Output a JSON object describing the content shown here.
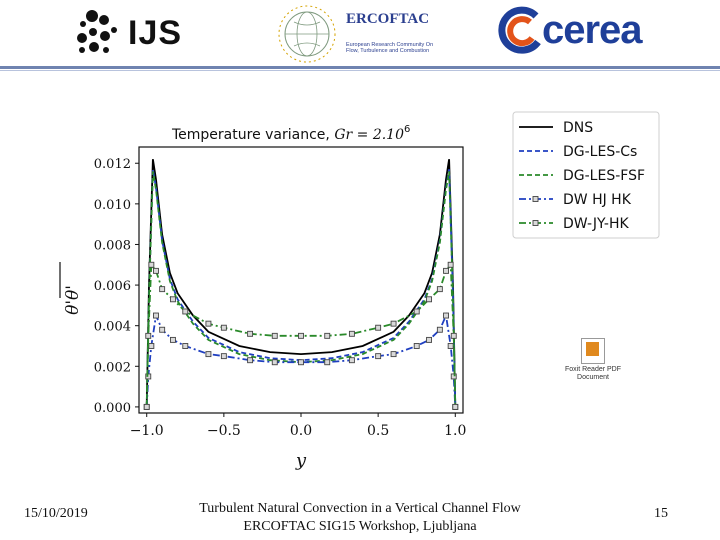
{
  "header": {
    "ijs_logo_text": "IJS",
    "ercoftac_title": "ERCOFTAC",
    "ercoftac_subtitle": "European Research Community On Flow, Turbulence and Combustion",
    "cerea_logo_text": "cerea"
  },
  "footer": {
    "date": "15/10/2019",
    "title_line1": "Turbulent Natural Convection in a Vertical Channel Flow",
    "title_line2": "ERCOFTAC SIG15 Workshop, Ljubljana",
    "page_number": "15"
  },
  "embedded_object": {
    "label_line1": "Foxit Reader PDF",
    "label_line2": "Document"
  },
  "chart_data": {
    "type": "line",
    "title": "Temperature variance, Gr = 2.10^6",
    "title_main": "Temperature variance, ",
    "title_math": "Gr = 2.10",
    "title_exp": "6",
    "xlabel": "y",
    "ylabel": "θ'θ'",
    "xlim": [
      -1.05,
      1.05
    ],
    "ylim": [
      -0.0003,
      0.0128
    ],
    "xticks": [
      -1.0,
      -0.5,
      0.0,
      0.5,
      1.0
    ],
    "xtick_labels": [
      "−1.0",
      "−0.5",
      "0.0",
      "0.5",
      "1.0"
    ],
    "yticks": [
      0.0,
      0.002,
      0.004,
      0.006,
      0.008,
      0.01,
      0.012
    ],
    "ytick_labels": [
      "0.000",
      "0.002",
      "0.004",
      "0.006",
      "0.008",
      "0.010",
      "0.012"
    ],
    "grid": false,
    "legend_position": "outside-right-top",
    "series": [
      {
        "name": "DNS",
        "color": "#000000",
        "style": "solid",
        "marker": "none",
        "x": [
          -1.0,
          -0.985,
          -0.96,
          -0.94,
          -0.9,
          -0.85,
          -0.8,
          -0.7,
          -0.6,
          -0.4,
          -0.2,
          0.0,
          0.2,
          0.4,
          0.6,
          0.7,
          0.8,
          0.85,
          0.9,
          0.94,
          0.96,
          0.985,
          1.0
        ],
        "y": [
          0.0,
          0.006,
          0.0122,
          0.0112,
          0.0085,
          0.0066,
          0.0056,
          0.0045,
          0.0037,
          0.003,
          0.0027,
          0.0026,
          0.0027,
          0.003,
          0.0037,
          0.0045,
          0.0056,
          0.0066,
          0.0085,
          0.0112,
          0.0122,
          0.006,
          0.0
        ]
      },
      {
        "name": "DG-LES-Cs",
        "color": "#1f3fc0",
        "style": "dashed",
        "marker": "none",
        "x": [
          -1.0,
          -0.985,
          -0.96,
          -0.94,
          -0.9,
          -0.85,
          -0.8,
          -0.7,
          -0.6,
          -0.4,
          -0.2,
          0.0,
          0.2,
          0.4,
          0.6,
          0.7,
          0.8,
          0.85,
          0.9,
          0.94,
          0.96,
          0.985,
          1.0
        ],
        "y": [
          0.0,
          0.0055,
          0.0117,
          0.0108,
          0.0082,
          0.0063,
          0.0053,
          0.0042,
          0.0034,
          0.0027,
          0.0024,
          0.0023,
          0.0024,
          0.0027,
          0.0034,
          0.0042,
          0.0053,
          0.0063,
          0.0082,
          0.0108,
          0.0117,
          0.0055,
          0.0
        ]
      },
      {
        "name": "DG-LES-FSF",
        "color": "#2a8a2a",
        "style": "dashed",
        "marker": "none",
        "x": [
          -1.0,
          -0.985,
          -0.96,
          -0.94,
          -0.9,
          -0.85,
          -0.8,
          -0.7,
          -0.6,
          -0.4,
          -0.2,
          0.0,
          0.2,
          0.4,
          0.6,
          0.7,
          0.8,
          0.85,
          0.9,
          0.94,
          0.96,
          0.985,
          1.0
        ],
        "y": [
          0.0,
          0.0054,
          0.0116,
          0.0107,
          0.0081,
          0.0062,
          0.0052,
          0.0041,
          0.0033,
          0.0026,
          0.0023,
          0.0022,
          0.0023,
          0.0026,
          0.0033,
          0.0041,
          0.0052,
          0.0062,
          0.0081,
          0.0107,
          0.0116,
          0.0054,
          0.0
        ]
      },
      {
        "name": "DW HJ HK",
        "color": "#1f3fc0",
        "style": "dashdot",
        "marker": "square",
        "x": [
          -1.0,
          -0.99,
          -0.97,
          -0.94,
          -0.9,
          -0.83,
          -0.75,
          -0.6,
          -0.5,
          -0.33,
          -0.17,
          0.0,
          0.17,
          0.33,
          0.5,
          0.6,
          0.75,
          0.83,
          0.9,
          0.94,
          0.97,
          0.99,
          1.0
        ],
        "y": [
          0.0,
          0.0015,
          0.003,
          0.0045,
          0.0038,
          0.0033,
          0.003,
          0.0026,
          0.0025,
          0.0023,
          0.0022,
          0.0022,
          0.0022,
          0.0023,
          0.0025,
          0.0026,
          0.003,
          0.0033,
          0.0038,
          0.0045,
          0.003,
          0.0015,
          0.0
        ]
      },
      {
        "name": "DW-JY-HK",
        "color": "#2a8a2a",
        "style": "dashdot",
        "marker": "square",
        "x": [
          -1.0,
          -0.99,
          -0.97,
          -0.94,
          -0.9,
          -0.83,
          -0.75,
          -0.6,
          -0.5,
          -0.33,
          -0.17,
          0.0,
          0.17,
          0.33,
          0.5,
          0.6,
          0.75,
          0.83,
          0.9,
          0.94,
          0.97,
          0.99,
          1.0
        ],
        "y": [
          0.0,
          0.0035,
          0.007,
          0.0067,
          0.0058,
          0.0053,
          0.0047,
          0.0041,
          0.0039,
          0.0036,
          0.0035,
          0.0035,
          0.0035,
          0.0036,
          0.0039,
          0.0041,
          0.0047,
          0.0053,
          0.0058,
          0.0067,
          0.007,
          0.0035,
          0.0
        ]
      }
    ]
  }
}
